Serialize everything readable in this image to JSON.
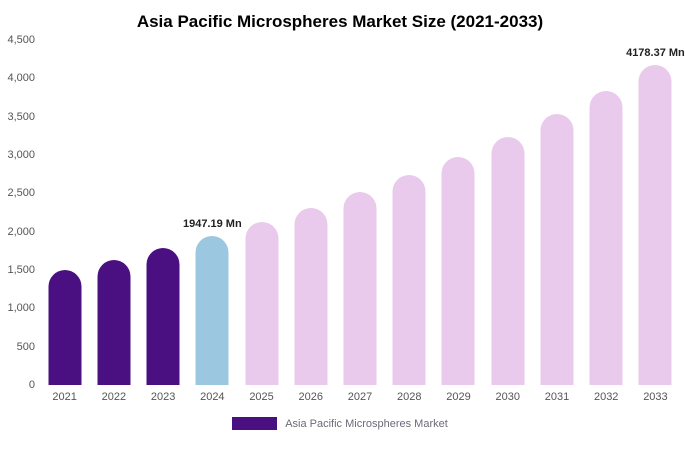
{
  "title": "Asia Pacific Microspheres Market Size (2021-2033)",
  "legend": {
    "label": "Asia Pacific Microspheres Market",
    "swatch_color": "#4a1082"
  },
  "chart_data": {
    "type": "bar",
    "title": "Asia Pacific Microspheres Market Size (2021-2033)",
    "categories": [
      "2021",
      "2022",
      "2023",
      "2024",
      "2025",
      "2026",
      "2027",
      "2028",
      "2029",
      "2030",
      "2031",
      "2032",
      "2033"
    ],
    "values": [
      1503,
      1637,
      1782,
      1947.19,
      2120,
      2308,
      2512,
      2735,
      2977,
      3241,
      3529,
      3841,
      4178.37
    ],
    "ylim": [
      0,
      4500
    ],
    "yticks": [
      0,
      500,
      1000,
      1500,
      2000,
      2500,
      3000,
      3500,
      4000,
      4500
    ],
    "ytick_labels": [
      "0",
      "500",
      "1,000",
      "1,500",
      "2,000",
      "2,500",
      "3,000",
      "3,500",
      "4,000",
      "4,500"
    ],
    "grid": false,
    "legend_position": "bottom",
    "colors": {
      "historical": "#4a1082",
      "highlight": "#9cc7e0",
      "forecast": "#e9c9ec"
    },
    "color_roles": [
      "historical",
      "historical",
      "historical",
      "highlight",
      "forecast",
      "forecast",
      "forecast",
      "forecast",
      "forecast",
      "forecast",
      "forecast",
      "forecast",
      "forecast"
    ],
    "annotations": [
      {
        "category": "2024",
        "text": "1947.19 Mn"
      },
      {
        "category": "2033",
        "text": "4178.37 Mn"
      }
    ]
  }
}
